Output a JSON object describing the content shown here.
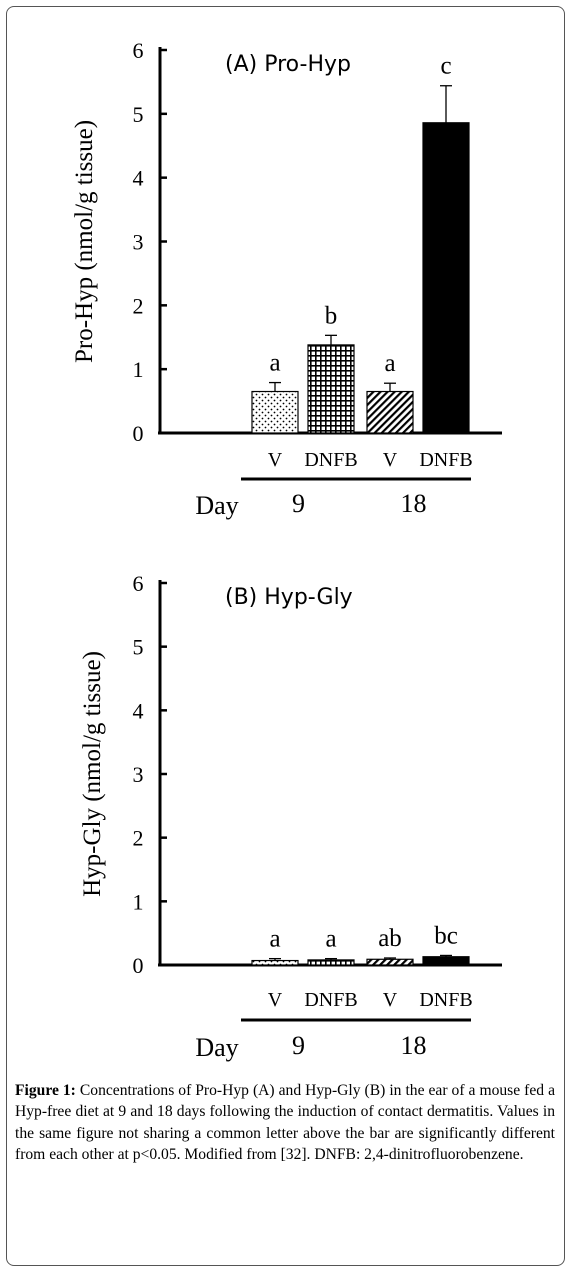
{
  "caption": {
    "label": "Figure 1:",
    "text": "Concentrations of Pro-Hyp (A) and Hyp-Gly (B) in the ear of a mouse fed a Hyp-free diet at 9 and 18 days following the induction of contact dermatitis. Values in the same figure not sharing a common letter above the bar are significantly different from each other at p<0.05. Modified from [32]. DNFB: 2,4-dinitrofluorobenzene."
  },
  "chart_data": [
    {
      "type": "bar",
      "title": "(A) Pro-Hyp",
      "ylabel": "Pro-Hyp (nmol/g tissue)",
      "ylim": [
        0,
        6
      ],
      "yticks": [
        "0",
        "1",
        "2",
        "3",
        "4",
        "5",
        "6"
      ],
      "categories": [
        "V",
        "DNFB",
        "V",
        "DNFB"
      ],
      "groups": [
        {
          "label": "9",
          "span": [
            0,
            1
          ]
        },
        {
          "label": "18",
          "span": [
            2,
            3
          ]
        }
      ],
      "group_axis_label": "Day",
      "values": [
        0.65,
        1.38,
        0.65,
        4.86
      ],
      "errors": [
        0.14,
        0.15,
        0.13,
        0.58
      ],
      "significance": [
        "a",
        "b",
        "a",
        "c"
      ],
      "patterns": [
        "dots",
        "grid",
        "diagonal",
        "solid"
      ]
    },
    {
      "type": "bar",
      "title": "(B) Hyp-Gly",
      "ylabel": "Hyp-Gly (nmol/g tissue)",
      "ylim": [
        0,
        6
      ],
      "yticks": [
        "0",
        "1",
        "2",
        "3",
        "4",
        "5",
        "6"
      ],
      "categories": [
        "V",
        "DNFB",
        "V",
        "DNFB"
      ],
      "groups": [
        {
          "label": "9",
          "span": [
            0,
            1
          ]
        },
        {
          "label": "18",
          "span": [
            2,
            3
          ]
        }
      ],
      "group_axis_label": "Day",
      "values": [
        0.07,
        0.08,
        0.09,
        0.13
      ],
      "errors": [
        0.03,
        0.02,
        0.02,
        0.02
      ],
      "significance": [
        "a",
        "a",
        "ab",
        "bc"
      ],
      "patterns": [
        "dots",
        "grid",
        "diagonal",
        "solid"
      ]
    }
  ]
}
